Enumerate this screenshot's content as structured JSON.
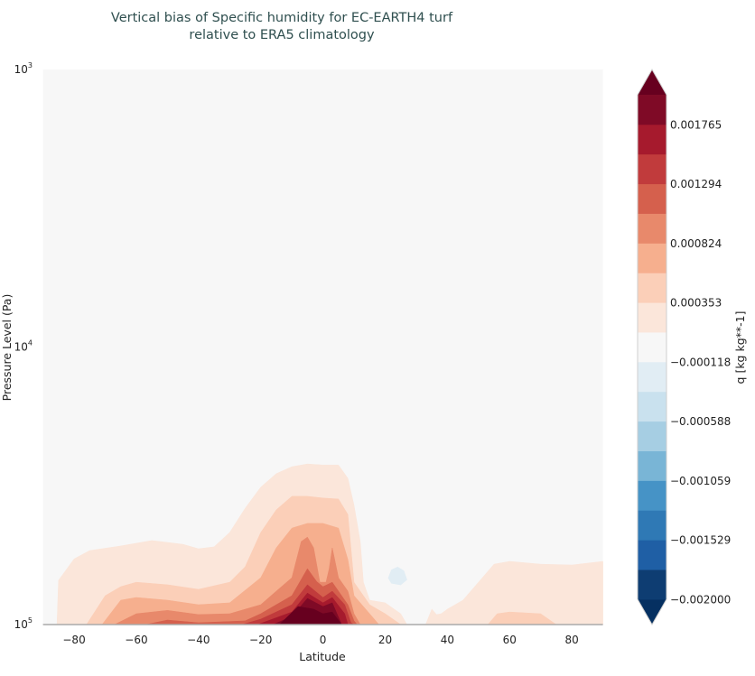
{
  "chart_data": {
    "type": "contourf",
    "title_lines": [
      "Vertical bias of Specific humidity for EC-EARTH4 turf",
      "relative to ERA5 climatology"
    ],
    "xlabel": "Latitude",
    "ylabel": "Pressure Level (Pa)",
    "xlim": [
      -90,
      90
    ],
    "ylim": [
      100000,
      1000
    ],
    "yscale": "log",
    "x_ticks": [
      -80,
      -60,
      -40,
      -20,
      0,
      20,
      40,
      60,
      80
    ],
    "y_ticks": [
      {
        "base": "10",
        "exp": "3",
        "value": 1000
      },
      {
        "base": "10",
        "exp": "4",
        "value": 10000
      },
      {
        "base": "10",
        "exp": "5",
        "value": 100000
      }
    ],
    "background_level_color": "#f7f7f7",
    "colorbar": {
      "label": "q [kg kg**-1]",
      "levels_min": -0.002,
      "levels_max": 0.002,
      "n_bands": 17,
      "extend": "both",
      "colormap": "RdBu_r",
      "band_colors": [
        "#0e3d72",
        "#1f5fa5",
        "#2f79b5",
        "#4693c6",
        "#79b5d6",
        "#a6cee3",
        "#c9e1ee",
        "#e1edf4",
        "#f7f7f7",
        "#fbe6da",
        "#fbcfb8",
        "#f6af8e",
        "#e8896b",
        "#d5604d",
        "#c13b3c",
        "#a61a2d",
        "#7f0a26"
      ],
      "extend_max_color": "#67001f",
      "extend_min_color": "#053061",
      "tick_labels": [
        "-0.002000",
        "-0.001529",
        "-0.001059",
        "-0.000588",
        "-0.000118",
        "0.000353",
        "0.000824",
        "0.001294",
        "0.001765"
      ]
    },
    "regions": [
      {
        "min_value": 0.000118,
        "band": 9,
        "closed": false,
        "points": [
          [
            -85.5,
            100000
          ],
          [
            -85,
            69300
          ],
          [
            -80,
            58000
          ],
          [
            -75,
            54100
          ],
          [
            -65,
            52100
          ],
          [
            -55,
            49800
          ],
          [
            -45,
            51400
          ],
          [
            -40,
            53300
          ],
          [
            -35,
            52500
          ],
          [
            -30,
            46600
          ],
          [
            -25,
            38100
          ],
          [
            -20,
            32000
          ],
          [
            -15,
            28600
          ],
          [
            -10,
            27000
          ],
          [
            -5,
            26400
          ],
          [
            0,
            26600
          ],
          [
            5,
            26600
          ],
          [
            8,
            29700
          ],
          [
            10,
            37200
          ],
          [
            12,
            50200
          ],
          [
            13,
            70400
          ],
          [
            15,
            81700
          ],
          [
            20,
            83500
          ],
          [
            25,
            91400
          ],
          [
            27,
            100000
          ]
        ]
      },
      {
        "min_value": 0.000118,
        "band": 9,
        "closed": false,
        "points": [
          [
            33,
            100000
          ],
          [
            35,
            88000
          ],
          [
            36.5,
            92000
          ],
          [
            38,
            91400
          ],
          [
            40,
            88000
          ],
          [
            45,
            81700
          ],
          [
            50,
            70400
          ],
          [
            55,
            60600
          ],
          [
            60,
            59200
          ],
          [
            70,
            60600
          ],
          [
            80,
            61000
          ],
          [
            90,
            59200
          ],
          [
            90,
            100000
          ]
        ]
      },
      {
        "min_value": 0.000353,
        "band": 10,
        "closed": false,
        "points": [
          [
            -76,
            100000
          ],
          [
            -70,
            78700
          ],
          [
            -65,
            73000
          ],
          [
            -60,
            70400
          ],
          [
            -50,
            71900
          ],
          [
            -40,
            74700
          ],
          [
            -30,
            70400
          ],
          [
            -25,
            61900
          ],
          [
            -20,
            46600
          ],
          [
            -15,
            38600
          ],
          [
            -10,
            34500
          ],
          [
            -5,
            34500
          ],
          [
            0,
            35000
          ],
          [
            5,
            35300
          ],
          [
            8,
            40100
          ],
          [
            10,
            70400
          ],
          [
            15,
            84800
          ],
          [
            20,
            91400
          ],
          [
            25,
            100000
          ]
        ]
      },
      {
        "min_value": 0.000353,
        "band": 10,
        "closed": false,
        "points": [
          [
            53,
            100000
          ],
          [
            56,
            91400
          ],
          [
            60,
            90100
          ],
          [
            70,
            91400
          ],
          [
            75,
            100000
          ]
        ]
      },
      {
        "min_value": 0.000588,
        "band": 11,
        "closed": false,
        "points": [
          [
            -71,
            100000
          ],
          [
            -65,
            81700
          ],
          [
            -60,
            79900
          ],
          [
            -50,
            81700
          ],
          [
            -40,
            84800
          ],
          [
            -30,
            83500
          ],
          [
            -20,
            67800
          ],
          [
            -15,
            52900
          ],
          [
            -10,
            44900
          ],
          [
            -5,
            43200
          ],
          [
            0,
            43200
          ],
          [
            5,
            44900
          ],
          [
            8,
            58300
          ],
          [
            10,
            78700
          ],
          [
            15,
            91400
          ],
          [
            18,
            100000
          ]
        ]
      },
      {
        "min_value": 0.000824,
        "band": 12,
        "closed": false,
        "points": [
          [
            -67,
            100000
          ],
          [
            -60,
            91400
          ],
          [
            -50,
            88900
          ],
          [
            -40,
            92000
          ],
          [
            -30,
            91400
          ],
          [
            -20,
            84800
          ],
          [
            -15,
            75800
          ],
          [
            -10,
            67800
          ],
          [
            -7,
            50200
          ],
          [
            -5,
            48400
          ],
          [
            -3,
            52900
          ],
          [
            -1,
            70400
          ],
          [
            1,
            70400
          ],
          [
            2,
            62900
          ],
          [
            3,
            52900
          ],
          [
            5,
            67800
          ],
          [
            8,
            75800
          ],
          [
            10,
            91400
          ],
          [
            12,
            100000
          ]
        ]
      },
      {
        "min_value": 0.001059,
        "band": 13,
        "closed": false,
        "points": [
          [
            -57,
            100000
          ],
          [
            -50,
            96300
          ],
          [
            -40,
            98500
          ],
          [
            -25,
            97000
          ],
          [
            -20,
            91400
          ],
          [
            -15,
            84800
          ],
          [
            -10,
            78700
          ],
          [
            -5,
            62900
          ],
          [
            -2,
            70000
          ],
          [
            0,
            73000
          ],
          [
            3,
            70400
          ],
          [
            5,
            75800
          ],
          [
            8,
            84800
          ],
          [
            10,
            97000
          ],
          [
            11,
            100000
          ]
        ]
      },
      {
        "min_value": 0.001294,
        "band": 14,
        "closed": false,
        "points": [
          [
            -26,
            100000
          ],
          [
            -20,
            95600
          ],
          [
            -10,
            84800
          ],
          [
            -5,
            71900
          ],
          [
            0,
            79900
          ],
          [
            3,
            75800
          ],
          [
            7,
            84800
          ],
          [
            9,
            98500
          ],
          [
            10,
            100000
          ]
        ]
      },
      {
        "min_value": 0.001529,
        "band": 15,
        "closed": false,
        "points": [
          [
            -21,
            100000
          ],
          [
            -10,
            90100
          ],
          [
            -5,
            77000
          ],
          [
            0,
            83500
          ],
          [
            3,
            79900
          ],
          [
            7,
            91400
          ],
          [
            8,
            100000
          ]
        ]
      },
      {
        "min_value": 0.001765,
        "band": 16,
        "closed": false,
        "points": [
          [
            -16,
            100000
          ],
          [
            -10,
            93500
          ],
          [
            -5,
            80500
          ],
          [
            0,
            86100
          ],
          [
            3,
            83500
          ],
          [
            6,
            100000
          ]
        ]
      },
      {
        "min_value": 0.002,
        "band": "extend_max",
        "closed": false,
        "points": [
          [
            -14,
            100000
          ],
          [
            -8,
            86100
          ],
          [
            -3,
            88000
          ],
          [
            0,
            91400
          ],
          [
            3,
            90100
          ],
          [
            6,
            100000
          ]
        ]
      },
      {
        "max_value": -0.000118,
        "band": 7,
        "closed": true,
        "points": [
          [
            21,
            68000
          ],
          [
            22,
            63500
          ],
          [
            24,
            62000
          ],
          [
            26,
            64000
          ],
          [
            27,
            69000
          ],
          [
            25,
            72000
          ],
          [
            22,
            71000
          ]
        ]
      }
    ]
  }
}
